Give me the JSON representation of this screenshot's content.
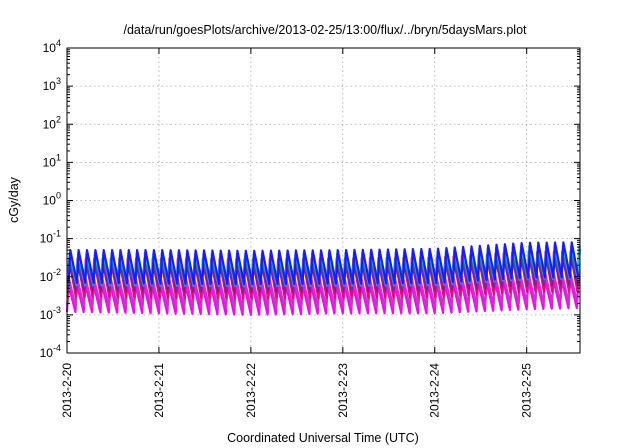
{
  "chart_data": {
    "type": "line",
    "title": "/data/run/goesPlots/archive/2013-02-25/13:00/flux/../bryn/5daysMars.plot",
    "xlabel": "Coordinated Universal Time (UTC)",
    "ylabel": "cGy/day",
    "y_scale": "log",
    "ylim": [
      0.0001,
      10000
    ],
    "y_ticks": [
      {
        "base": "10",
        "exp": "-4"
      },
      {
        "base": "10",
        "exp": "-3"
      },
      {
        "base": "10",
        "exp": "-2"
      },
      {
        "base": "10",
        "exp": "-1"
      },
      {
        "base": "10",
        "exp": "0"
      },
      {
        "base": "10",
        "exp": "1"
      },
      {
        "base": "10",
        "exp": "2"
      },
      {
        "base": "10",
        "exp": "3"
      },
      {
        "base": "10",
        "exp": "4"
      }
    ],
    "x_ticks": [
      "2013-2-20",
      "2013-2-21",
      "2013-2-22",
      "2013-2-23",
      "2013-2-24",
      "2013-2-25"
    ],
    "x_range_days": [
      0,
      5.58
    ],
    "grid": true,
    "legend": "none",
    "oscillation": {
      "cycles_per_day": 11,
      "note_peak_day_fraction": 0.2
    },
    "series_style": [
      {
        "color": "#ff00ff"
      },
      {
        "color": "#cc33cc"
      },
      {
        "color": "#e0106f"
      },
      {
        "color": "#8b1c8b"
      },
      {
        "color": "#2e7d32"
      },
      {
        "color": "#1e8fff"
      },
      {
        "color": "#00c8d8"
      },
      {
        "color": "#1a1aff"
      }
    ],
    "series": [
      {
        "color": "#ff00ff",
        "peak": [
          0.006,
          0.006,
          0.006,
          0.006,
          0.0065,
          0.008,
          0.009
        ],
        "trough": [
          0.0012,
          0.0011,
          0.001,
          0.0011,
          0.0011,
          0.0014,
          0.0016
        ]
      },
      {
        "color": "#cc33cc",
        "peak": [
          0.009,
          0.009,
          0.009,
          0.009,
          0.0095,
          0.012,
          0.013
        ],
        "trough": [
          0.0017,
          0.0016,
          0.0015,
          0.0016,
          0.0016,
          0.002,
          0.0022
        ]
      },
      {
        "color": "#e0106f",
        "peak": [
          0.03,
          0.03,
          0.029,
          0.03,
          0.032,
          0.045,
          0.048
        ],
        "trough": [
          0.003,
          0.0028,
          0.0027,
          0.0028,
          0.0029,
          0.004,
          0.0042
        ]
      },
      {
        "color": "#8b1c8b",
        "peak": [
          0.02,
          0.02,
          0.019,
          0.02,
          0.021,
          0.03,
          0.032
        ],
        "trough": [
          0.0045,
          0.0042,
          0.004,
          0.0042,
          0.0044,
          0.006,
          0.0062
        ]
      },
      {
        "color": "#2e7d32",
        "peak": [
          0.025,
          0.025,
          0.024,
          0.025,
          0.026,
          0.036,
          0.038
        ],
        "trough": [
          0.008,
          0.0076,
          0.0074,
          0.0076,
          0.0078,
          0.01,
          0.011
        ]
      },
      {
        "color": "#1e8fff",
        "peak": [
          0.042,
          0.042,
          0.04,
          0.042,
          0.045,
          0.065,
          0.068
        ],
        "trough": [
          0.006,
          0.0058,
          0.0056,
          0.0058,
          0.006,
          0.0085,
          0.009
        ]
      },
      {
        "color": "#00c8d8",
        "peak": [
          0.035,
          0.035,
          0.034,
          0.035,
          0.037,
          0.052,
          0.055
        ],
        "trough": [
          0.01,
          0.0095,
          0.0092,
          0.0095,
          0.0098,
          0.013,
          0.014
        ]
      },
      {
        "color": "#1a1aff",
        "peak": [
          0.05,
          0.05,
          0.048,
          0.05,
          0.054,
          0.078,
          0.082
        ],
        "trough": [
          0.007,
          0.0066,
          0.0064,
          0.0066,
          0.0068,
          0.0095,
          0.01
        ]
      }
    ]
  }
}
